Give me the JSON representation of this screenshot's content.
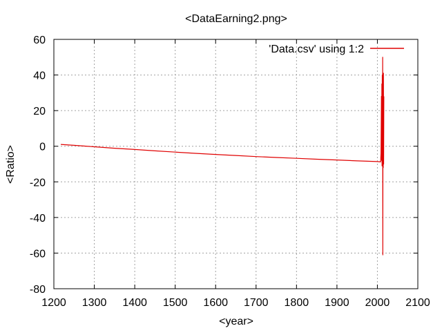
{
  "chart_data": {
    "type": "line",
    "title": "<DataEarning2.png>",
    "xlabel": "<year>",
    "ylabel": "<Ratio>",
    "xlim": [
      1200,
      2100
    ],
    "ylim": [
      -80,
      60
    ],
    "grid": true,
    "legend_placement": "top-right",
    "x_ticks": [
      1200,
      1300,
      1400,
      1500,
      1600,
      1700,
      1800,
      1900,
      2000,
      2100
    ],
    "y_ticks": [
      -80,
      -60,
      -40,
      -20,
      0,
      20,
      40,
      60
    ],
    "series": [
      {
        "name": "'Data.csv' using 1:2",
        "color": "#e00000",
        "x": [
          1217,
          1250,
          1300,
          1350,
          1400,
          1450,
          1500,
          1550,
          1600,
          1650,
          1700,
          1750,
          1800,
          1850,
          1900,
          1950,
          2000,
          2008,
          2009,
          2010,
          2010.5,
          2011,
          2011.5,
          2012,
          2012.5,
          2013,
          2013.5,
          2014,
          2014.5,
          2015,
          2015.5,
          2016
        ],
        "y": [
          1,
          0.5,
          -0.3,
          -1.1,
          -1.8,
          -2.6,
          -3.3,
          -4.0,
          -4.6,
          -5.2,
          -5.8,
          -6.3,
          -6.8,
          -7.3,
          -7.7,
          -8.2,
          -8.6,
          -8.8,
          -4,
          28,
          -8,
          35,
          -11,
          40,
          -9,
          50,
          -61,
          38,
          -12,
          41,
          -10,
          28
        ]
      }
    ]
  }
}
